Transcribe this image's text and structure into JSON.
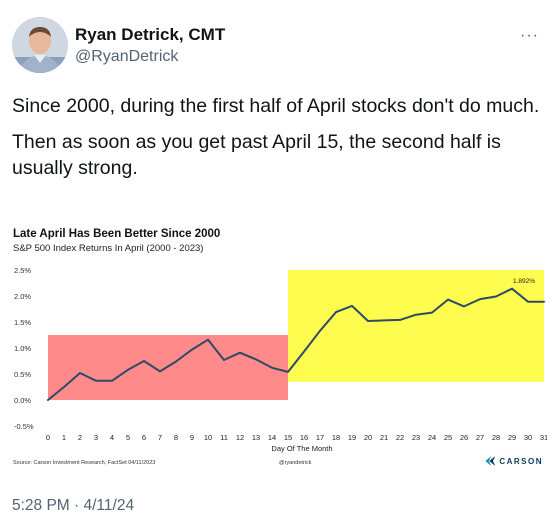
{
  "author": {
    "name": "Ryan Detrick, CMT",
    "handle": "@RyanDetrick"
  },
  "tweet": {
    "paragraph1": "Since 2000, during the first half of April stocks don't do much.",
    "paragraph2": "Then as soon as you get past April 15, the second half is usually strong.",
    "timestamp": "5:28 PM · 4/11/24"
  },
  "chart_data": {
    "type": "line",
    "title": "Late April Has Been Better Since 2000",
    "subtitle": "S&P 500 Index Returns In April (2000 - 2023)",
    "xlabel": "Day Of The Month",
    "ylabel": "",
    "x": [
      0,
      1,
      2,
      3,
      4,
      5,
      6,
      7,
      8,
      9,
      10,
      11,
      12,
      13,
      14,
      15,
      16,
      17,
      18,
      19,
      20,
      21,
      22,
      23,
      24,
      25,
      26,
      27,
      28,
      29,
      30,
      31
    ],
    "series": [
      {
        "values": [
          0.0,
          0.25,
          0.52,
          0.37,
          0.37,
          0.58,
          0.75,
          0.55,
          0.74,
          0.97,
          1.16,
          0.77,
          0.91,
          0.78,
          0.62,
          0.54,
          0.93,
          1.33,
          1.69,
          1.81,
          1.52,
          1.53,
          1.54,
          1.64,
          1.68,
          1.93,
          1.8,
          1.94,
          1.99,
          2.14,
          1.89,
          1.89
        ],
        "color": "#2e4a66"
      }
    ],
    "ylim": [
      -0.5,
      2.5
    ],
    "yticks": [
      "-0.5%",
      "0.0%",
      "0.5%",
      "1.0%",
      "1.5%",
      "2.0%",
      "2.5%"
    ],
    "annotation": {
      "text": "1.892%",
      "x": 31,
      "y": 1.892
    },
    "regions": [
      {
        "x_start": 0,
        "x_end": 15,
        "y_low": 0.0,
        "y_high": 1.25,
        "color": "#fe8a8a"
      },
      {
        "x_start": 15,
        "x_end": 31,
        "y_low": 0.35,
        "y_high": 2.5,
        "color": "#fdfc4f"
      }
    ],
    "grid": false,
    "source": "Source: Carson Investment Research, FactSet 04/11/2023",
    "credit": "@ryandetrick",
    "brand": "CARSON"
  }
}
